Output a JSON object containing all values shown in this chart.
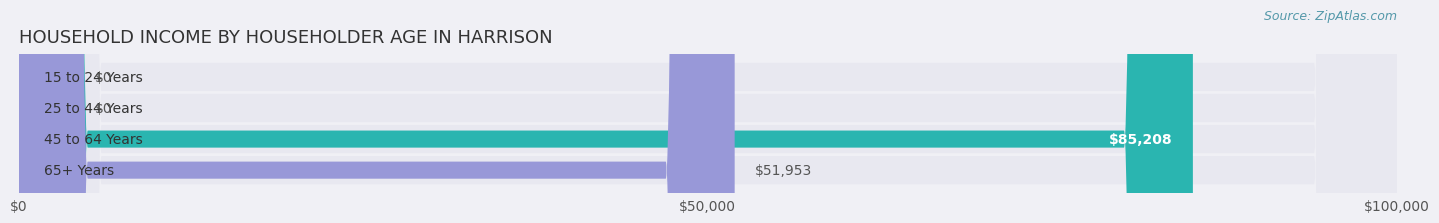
{
  "title": "HOUSEHOLD INCOME BY HOUSEHOLDER AGE IN HARRISON",
  "source": "Source: ZipAtlas.com",
  "categories": [
    "15 to 24 Years",
    "25 to 44 Years",
    "45 to 64 Years",
    "65+ Years"
  ],
  "values": [
    0,
    0,
    85208,
    51953
  ],
  "bar_colors": [
    "#a8c8e8",
    "#c8a8cc",
    "#2ab5b0",
    "#9898d8"
  ],
  "label_colors": [
    "#555555",
    "#555555",
    "#ffffff",
    "#555555"
  ],
  "xlim": [
    0,
    100000
  ],
  "xticks": [
    0,
    50000,
    100000
  ],
  "xticklabels": [
    "$0",
    "$50,000",
    "$100,000"
  ],
  "background_color": "#f0f0f5",
  "bar_background_color": "#e8e8f0",
  "title_fontsize": 13,
  "label_fontsize": 10,
  "tick_fontsize": 10,
  "source_fontsize": 9
}
